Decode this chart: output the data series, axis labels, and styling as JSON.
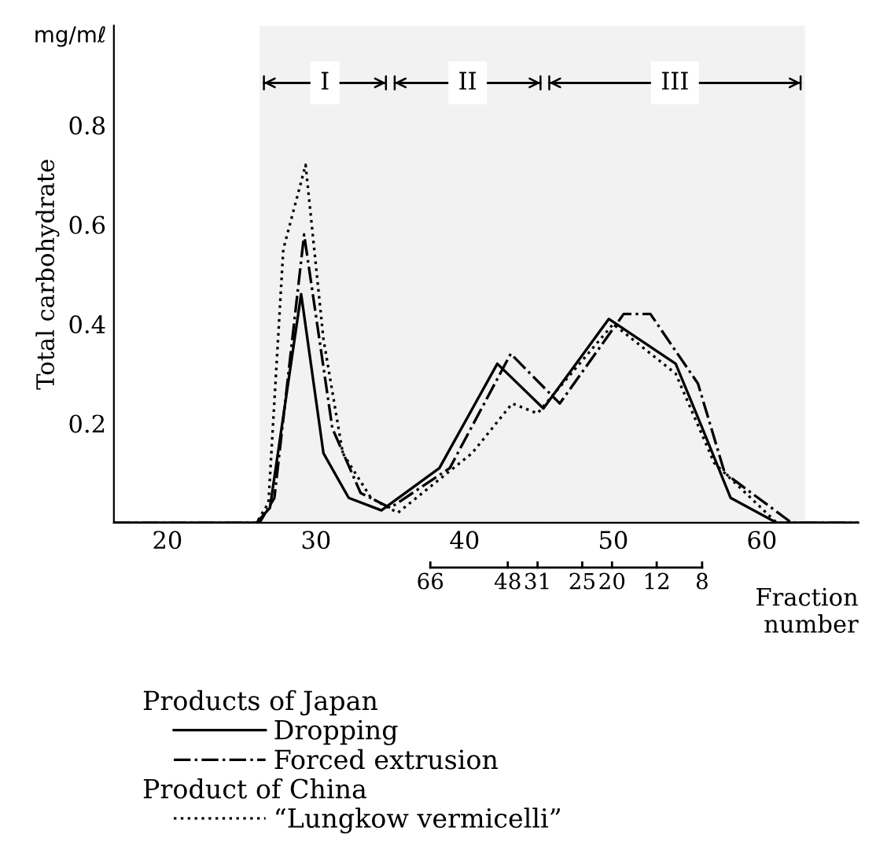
{
  "chart_data": {
    "type": "line",
    "ylabel": "Total carbohydrate",
    "xlabel": "Fraction\nnumber",
    "xlim": [
      16.4,
      66.5
    ],
    "xticks": [
      20,
      30,
      40,
      50,
      60
    ],
    "ylim": [
      0,
      1.0
    ],
    "yticks": [
      0.2,
      0.4,
      0.6,
      0.8
    ],
    "bands": [
      {
        "axis": "x",
        "from": 26.2,
        "to": 35.0,
        "label": "I"
      },
      {
        "axis": "x",
        "from": 35.0,
        "to": 45.4,
        "label": "II"
      },
      {
        "axis": "x",
        "from": 45.4,
        "to": 62.9,
        "label": "III"
      }
    ],
    "annotations": [
      "mg/mℓ",
      "Products of Japan",
      "Product of China",
      "66",
      "48",
      "31",
      "25",
      "20",
      "12",
      "8"
    ],
    "legend": "bottom",
    "grid": false,
    "series": [
      {
        "name": "Dropping",
        "color": "#000000",
        "line_style": "solid",
        "x": [
          16.4,
          26.0,
          26.9,
          29.0,
          30.5,
          32.2,
          34.4,
          38.3,
          42.2,
          45.3,
          49.7,
          54.2,
          56.0,
          57.9,
          61.0,
          66.5
        ],
        "values": [
          0,
          0,
          0.03,
          0.46,
          0.14,
          0.05,
          0.025,
          0.11,
          0.32,
          0.23,
          0.41,
          0.32,
          0.19,
          0.05,
          0,
          0
        ]
      },
      {
        "name": "Forced extrusion",
        "color": "#000000",
        "line_style": "dashdot",
        "x": [
          16.4,
          26.2,
          27.2,
          29.2,
          31.1,
          33.0,
          35.0,
          39.0,
          43.1,
          46.4,
          50.7,
          52.5,
          55.7,
          57.5,
          62.0,
          66.5
        ],
        "values": [
          0,
          0,
          0.05,
          0.58,
          0.19,
          0.06,
          0.03,
          0.11,
          0.34,
          0.24,
          0.42,
          0.42,
          0.28,
          0.1,
          0,
          0
        ]
      },
      {
        "name": "“Lungkow vermicelli”",
        "color": "#000000",
        "line_style": "dotted",
        "x": [
          16.4,
          26.0,
          26.8,
          27.8,
          29.3,
          30.5,
          31.8,
          33.7,
          35.5,
          40.5,
          43.2,
          44.9,
          50.0,
          54.2,
          56.8,
          61.0,
          66.5
        ],
        "values": [
          0,
          0,
          0.04,
          0.55,
          0.72,
          0.37,
          0.14,
          0.05,
          0.02,
          0.14,
          0.24,
          0.22,
          0.4,
          0.3,
          0.12,
          0,
          0
        ]
      }
    ]
  }
}
